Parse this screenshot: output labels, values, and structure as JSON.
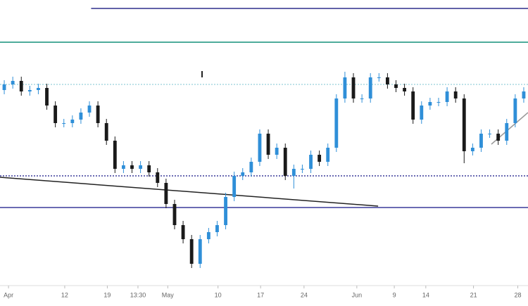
{
  "chart_data": {
    "type": "candlestick",
    "ylim": [
      0,
      100
    ],
    "xticks": [
      {
        "value": 0.5,
        "label": "Apr"
      },
      {
        "value": 7.1,
        "label": "12"
      },
      {
        "value": 12.1,
        "label": "19"
      },
      {
        "value": 15.7,
        "label": "13:30"
      },
      {
        "value": 19.2,
        "label": "May"
      },
      {
        "value": 25.1,
        "label": "10"
      },
      {
        "value": 30.1,
        "label": "17"
      },
      {
        "value": 35.2,
        "label": "24"
      },
      {
        "value": 41.4,
        "label": "Jun"
      },
      {
        "value": 45.8,
        "label": "9"
      },
      {
        "value": 49.5,
        "label": "14"
      },
      {
        "value": 55.1,
        "label": "21"
      },
      {
        "value": 60.3,
        "label": "28"
      }
    ],
    "up_color": "#2f8fd8",
    "down_color": "#1a1a1a",
    "candles": [
      [
        68,
        71.5,
        66.5,
        70
      ],
      [
        70,
        72.75,
        68.5,
        71.25
      ],
      [
        71.25,
        72.75,
        66,
        67.5
      ],
      [
        67.5,
        69.5,
        66,
        68
      ],
      [
        68,
        70.25,
        66.5,
        68.75
      ],
      [
        68.75,
        70.25,
        61,
        62.5
      ],
      [
        62.5,
        64,
        54.75,
        56.25
      ],
      [
        56.25,
        57.75,
        54.75,
        56.25
      ],
      [
        56.25,
        59,
        54.75,
        57.5
      ],
      [
        57.5,
        61.5,
        56,
        60
      ],
      [
        60,
        64,
        58.5,
        62.5
      ],
      [
        62.5,
        64,
        54.75,
        56.25
      ],
      [
        56.25,
        57.75,
        48.5,
        50
      ],
      [
        50,
        51.5,
        38.5,
        40
      ],
      [
        40,
        42.75,
        38.5,
        41.25
      ],
      [
        41.25,
        42.75,
        38.5,
        40
      ],
      [
        40,
        42.75,
        38.5,
        41.25
      ],
      [
        41.25,
        42.75,
        37.25,
        38.75
      ],
      [
        38.75,
        40.25,
        33.5,
        35
      ],
      [
        35,
        36.5,
        26,
        27.5
      ],
      [
        27.5,
        29,
        18.5,
        20
      ],
      [
        20,
        21.5,
        13.5,
        15
      ],
      [
        15,
        16.5,
        4.75,
        6.25
      ],
      [
        6.25,
        16.5,
        4.75,
        15
      ],
      [
        15,
        19,
        13.5,
        17.5
      ],
      [
        17.5,
        21.5,
        16,
        20
      ],
      [
        20,
        31.5,
        18.5,
        30
      ],
      [
        30,
        39,
        28.5,
        37.5
      ],
      [
        37.5,
        40.25,
        36,
        38.75
      ],
      [
        38.75,
        44,
        37.25,
        42.5
      ],
      [
        42.5,
        54,
        41,
        52.5
      ],
      [
        52.5,
        54,
        43.5,
        45
      ],
      [
        45,
        49,
        43.5,
        47.5
      ],
      [
        47.5,
        49,
        36,
        37.5
      ],
      [
        37.5,
        41.5,
        33,
        40
      ],
      [
        40,
        41.5,
        38.5,
        40
      ],
      [
        40,
        46.5,
        38.5,
        45
      ],
      [
        45,
        46.5,
        41,
        42.5
      ],
      [
        42.5,
        49,
        41,
        47.5
      ],
      [
        47.5,
        66.5,
        46,
        65
      ],
      [
        65,
        74.5,
        63.5,
        72.5
      ],
      [
        72.5,
        74,
        63.5,
        65
      ],
      [
        65,
        66.5,
        63.5,
        65
      ],
      [
        65,
        74,
        63.5,
        72.5
      ],
      [
        72.5,
        74,
        71,
        72.5
      ],
      [
        72.5,
        74,
        68.5,
        70
      ],
      [
        70,
        71.5,
        67.25,
        68.75
      ],
      [
        68.75,
        70.25,
        66,
        67.5
      ],
      [
        67.5,
        69,
        56,
        57.5
      ],
      [
        57.5,
        64,
        56,
        62.5
      ],
      [
        62.5,
        65.25,
        61,
        63.75
      ],
      [
        63.75,
        65.25,
        62.25,
        63.75
      ],
      [
        63.75,
        69,
        62.25,
        67.5
      ],
      [
        67.5,
        69,
        63.5,
        65
      ],
      [
        65,
        66.5,
        42,
        46.25
      ],
      [
        46.25,
        49,
        44.75,
        47.5
      ],
      [
        47.5,
        54,
        46,
        52.5
      ],
      [
        52.5,
        54,
        51,
        52.5
      ],
      [
        52.5,
        54,
        48.5,
        50
      ],
      [
        50,
        57.75,
        48.5,
        56.25
      ],
      [
        56.25,
        66.5,
        54.75,
        65
      ],
      [
        65,
        69,
        63.5,
        67.5
      ]
    ],
    "lines": [
      {
        "x": [
          10.2,
          61.5
        ],
        "y": [
          97,
          97
        ],
        "color": "#2e2e8c",
        "dashed": false
      },
      {
        "x": [
          -0.5,
          61.5
        ],
        "y": [
          85,
          85
        ],
        "color": "#14907a",
        "dashed": false
      },
      {
        "x": [
          -0.5,
          61.5
        ],
        "y": [
          70,
          70
        ],
        "color": "#a8d8e0",
        "dashed": true
      },
      {
        "x": [
          -0.5,
          61.5
        ],
        "y": [
          37.5,
          37.5
        ],
        "color": "#3a3a9a",
        "dashed": true
      },
      {
        "x": [
          -0.5,
          61.5
        ],
        "y": [
          26.25,
          26.25
        ],
        "color": "#3a3a9a",
        "dashed": false
      },
      {
        "x": [
          -0.5,
          43.9
        ],
        "y": [
          37,
          26.75
        ],
        "color": "#222222",
        "dashed": false
      },
      {
        "x": [
          57.2,
          61.5
        ],
        "y": [
          48.75,
          60
        ],
        "color": "#999999",
        "dashed": false
      }
    ]
  }
}
